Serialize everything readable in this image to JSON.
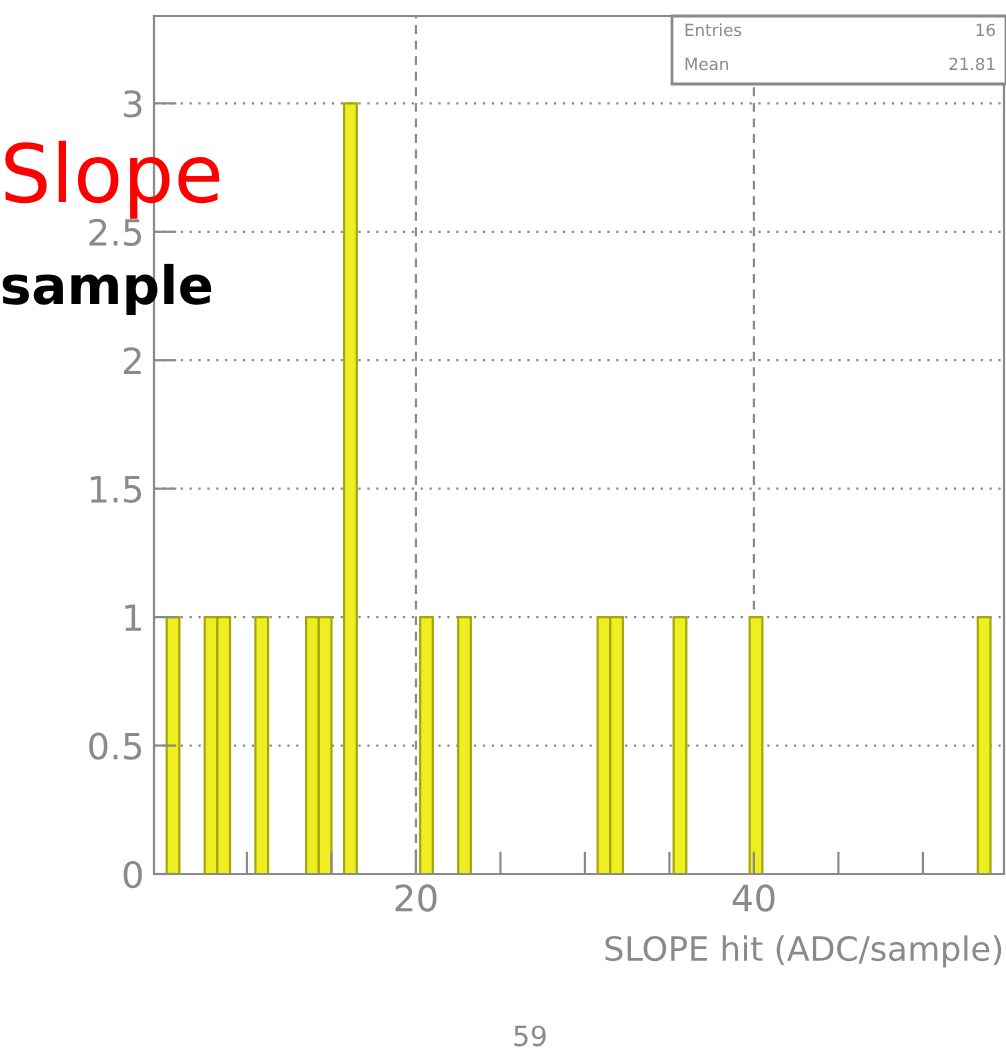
{
  "chart_data": {
    "type": "histogram",
    "xlabel": "SLOPE hit (ADC/sample)",
    "bins": [
      5.25,
      6.0,
      6.75,
      7.5,
      8.25,
      9.0,
      9.75,
      10.5,
      11.25,
      12.0,
      12.75,
      13.5,
      14.25,
      15.0,
      15.75,
      16.5,
      17.25,
      18.0,
      18.75,
      19.5,
      20.25,
      21.0,
      21.75,
      22.5,
      23.25,
      24.0,
      24.75,
      25.5,
      26.25,
      27.0,
      27.75,
      28.5,
      29.25,
      30.0,
      30.75,
      31.5,
      32.25,
      33.0,
      33.75,
      34.5,
      35.25,
      36.0,
      36.75,
      37.5,
      38.25,
      39.0,
      39.75,
      40.5,
      41.25,
      42.0,
      42.75,
      43.5,
      44.25,
      45.0,
      45.75,
      46.5,
      47.25,
      48.0,
      48.75,
      49.5,
      50.25,
      51.0,
      51.75,
      52.5,
      53.25,
      54.0,
      54.75
    ],
    "values": [
      1,
      0,
      0,
      1,
      1,
      0,
      0,
      1,
      0,
      0,
      0,
      1,
      1,
      0,
      3,
      0,
      0,
      0,
      0,
      0,
      1,
      0,
      0,
      1,
      0,
      0,
      0,
      0,
      0,
      0,
      0,
      0,
      0,
      0,
      1,
      1,
      0,
      0,
      0,
      0,
      1,
      0,
      0,
      0,
      0,
      0,
      1,
      0,
      0,
      0,
      0,
      0,
      0,
      0,
      0,
      0,
      0,
      0,
      0,
      0,
      0,
      0,
      0,
      0,
      1,
      0
    ],
    "color": "#eeee22",
    "xlim": [
      4.5,
      54.8
    ],
    "ylim": [
      0,
      3.34
    ],
    "xticks": [
      {
        "value": 10,
        "label": null
      },
      {
        "value": 15,
        "label": null
      },
      20,
      {
        "value": 25,
        "label": null
      },
      {
        "value": 30,
        "label": null
      },
      {
        "value": 35,
        "label": null
      },
      40,
      {
        "value": 45,
        "label": null
      },
      {
        "value": 50,
        "label": null
      }
    ],
    "yticks": [
      0,
      0.5,
      1,
      1.5,
      2,
      2.5,
      3
    ],
    "grid": true,
    "annotations": [
      "Slope",
      "sample",
      "Entries",
      "16",
      "Mean",
      "21.81",
      "59"
    ]
  }
}
